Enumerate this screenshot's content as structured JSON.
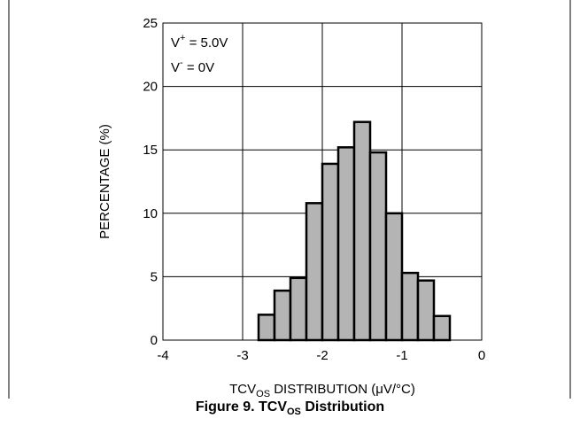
{
  "chart_data": {
    "type": "bar",
    "title": "",
    "xlabel_main": "TCV",
    "xlabel_sub": "OS",
    "xlabel_rest": " DISTRIBUTION (μV/°C)",
    "ylabel": "PERCENTAGE (%)",
    "xlim": [
      -4,
      0
    ],
    "ylim": [
      0,
      25
    ],
    "xticks": [
      "-4",
      "-3",
      "-2",
      "-1",
      "0"
    ],
    "yticks": [
      "0",
      "5",
      "10",
      "15",
      "20",
      "25"
    ],
    "grid": true,
    "bins": [
      {
        "x0": -2.8,
        "x1": -2.6,
        "value": 2.0
      },
      {
        "x0": -2.6,
        "x1": -2.4,
        "value": 3.9
      },
      {
        "x0": -2.4,
        "x1": -2.2,
        "value": 4.9
      },
      {
        "x0": -2.2,
        "x1": -2.0,
        "value": 10.8
      },
      {
        "x0": -2.0,
        "x1": -1.8,
        "value": 13.9
      },
      {
        "x0": -1.8,
        "x1": -1.6,
        "value": 15.2
      },
      {
        "x0": -1.6,
        "x1": -1.4,
        "value": 17.2
      },
      {
        "x0": -1.4,
        "x1": -1.2,
        "value": 14.8
      },
      {
        "x0": -1.2,
        "x1": -1.0,
        "value": 10.0
      },
      {
        "x0": -1.0,
        "x1": -0.8,
        "value": 5.3
      },
      {
        "x0": -0.8,
        "x1": -0.6,
        "value": 4.7
      },
      {
        "x0": -0.6,
        "x1": -0.4,
        "value": 1.9
      }
    ],
    "annotations": [
      {
        "main": "V",
        "sup": "+",
        "rest": " = 5.0V"
      },
      {
        "main": "V",
        "sup": "-",
        "rest": " = 0V"
      }
    ],
    "colors": {
      "bar_fill": "#b4b4b4",
      "bar_edge": "#000000",
      "grid": "#000000"
    }
  },
  "caption": {
    "main": "Figure 9. TCV",
    "sub": "OS",
    "rest": " Distribution"
  }
}
